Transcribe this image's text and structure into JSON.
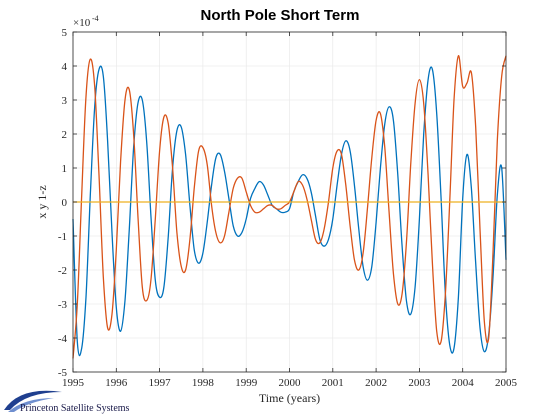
{
  "chart_data": {
    "type": "line",
    "title": "North Pole Short Term",
    "xlabel": "Time (years)",
    "ylabel": "x  y  1-z",
    "xlim": [
      1995,
      2005
    ],
    "ylim": [
      -0.0005,
      0.0005
    ],
    "y_multiplier_label": "×10",
    "y_multiplier_exponent": "-4",
    "xticks": [
      "1995",
      "1996",
      "1997",
      "1998",
      "1999",
      "2000",
      "2001",
      "2002",
      "2003",
      "2004",
      "2005"
    ],
    "yticks": [
      "-5",
      "-4",
      "-3",
      "-2",
      "-1",
      "0",
      "1",
      "2",
      "3",
      "4",
      "5"
    ],
    "grid": true,
    "series": [
      {
        "color": "#0072BD",
        "x": [
          1995.0,
          1995.1,
          1995.2,
          1995.3,
          1995.4,
          1995.5,
          1995.6,
          1995.7,
          1995.8,
          1995.9,
          1996.0,
          1996.1,
          1996.2,
          1996.3,
          1996.4,
          1996.5,
          1996.6,
          1996.7,
          1996.8,
          1996.9,
          1997.0,
          1997.1,
          1997.2,
          1997.3,
          1997.4,
          1997.5,
          1997.6,
          1997.7,
          1997.8,
          1997.9,
          1998.0,
          1998.1,
          1998.2,
          1998.3,
          1998.4,
          1998.5,
          1998.6,
          1998.7,
          1998.8,
          1998.9,
          1999.0,
          1999.1,
          1999.2,
          1999.3,
          1999.4,
          1999.5,
          1999.6,
          1999.7,
          1999.8,
          1999.9,
          2000.0,
          2000.1,
          2000.2,
          2000.3,
          2000.4,
          2000.5,
          2000.6,
          2000.7,
          2000.8,
          2000.9,
          2001.0,
          2001.1,
          2001.2,
          2001.3,
          2001.4,
          2001.5,
          2001.6,
          2001.7,
          2001.8,
          2001.9,
          2002.0,
          2002.1,
          2002.2,
          2002.3,
          2002.4,
          2002.5,
          2002.6,
          2002.7,
          2002.8,
          2002.9,
          2003.0,
          2003.1,
          2003.2,
          2003.3,
          2003.4,
          2003.5,
          2003.6,
          2003.7,
          2003.8,
          2003.9,
          2004.0,
          2004.1,
          2004.2,
          2004.3,
          2004.4,
          2004.5,
          2004.6,
          2004.7,
          2004.8,
          2004.9,
          2005.0
        ],
        "y": [
          -5e-05,
          -0.00041,
          -0.00043,
          -0.00028,
          2e-05,
          0.00028,
          0.00039,
          0.00037,
          0.00018,
          -9e-05,
          -0.00031,
          -0.00038,
          -0.00029,
          -8e-05,
          0.00016,
          0.00029,
          0.0003,
          0.00018,
          -4e-05,
          -0.00023,
          -0.00028,
          -0.00025,
          -0.0001,
          0.0001,
          0.00021,
          0.00022,
          0.00014,
          -1e-05,
          -0.00014,
          -0.00018,
          -0.00015,
          -6e-05,
          5e-05,
          0.00013,
          0.00014,
          9e-05,
          1e-05,
          -7e-05,
          -0.0001,
          -9e-05,
          -5e-05,
          1e-05,
          4e-05,
          6e-05,
          5e-05,
          2e-05,
          -1e-05,
          -2e-05,
          -3e-05,
          -3e-05,
          -2e-05,
          3e-05,
          6e-05,
          8e-05,
          7e-05,
          3e-05,
          -4e-05,
          -0.00011,
          -0.00013,
          -0.00011,
          -5e-05,
          5e-05,
          0.00014,
          0.00018,
          0.00015,
          5e-05,
          -8e-05,
          -0.00019,
          -0.00023,
          -0.00019,
          -6e-05,
          0.0001,
          0.00023,
          0.00028,
          0.00024,
          8e-05,
          -0.00013,
          -0.00029,
          -0.00033,
          -0.00025,
          -5e-05,
          0.0002,
          0.00036,
          0.00039,
          0.00026,
          1e-05,
          -0.00027,
          -0.00042,
          -0.00043,
          -0.00028,
          1e-05,
          0.00014,
          4e-05,
          -0.00018,
          -0.00037,
          -0.00044,
          -0.00039,
          -0.00022,
          2e-05,
          0.0001,
          -0.00017
        ]
      },
      {
        "color": "#D95319",
        "x": [
          1995.0,
          1995.1,
          1995.2,
          1995.3,
          1995.4,
          1995.5,
          1995.6,
          1995.7,
          1995.8,
          1995.9,
          1996.0,
          1996.1,
          1996.2,
          1996.3,
          1996.4,
          1996.5,
          1996.6,
          1996.7,
          1996.8,
          1996.9,
          1997.0,
          1997.1,
          1997.2,
          1997.3,
          1997.4,
          1997.5,
          1997.6,
          1997.7,
          1997.8,
          1997.9,
          1998.0,
          1998.1,
          1998.2,
          1998.3,
          1998.4,
          1998.5,
          1998.6,
          1998.7,
          1998.8,
          1998.9,
          1999.0,
          1999.1,
          1999.2,
          1999.3,
          1999.4,
          1999.5,
          1999.6,
          1999.7,
          1999.8,
          1999.9,
          2000.0,
          2000.1,
          2000.2,
          2000.3,
          2000.4,
          2000.5,
          2000.6,
          2000.7,
          2000.8,
          2000.9,
          2001.0,
          2001.1,
          2001.2,
          2001.3,
          2001.4,
          2001.5,
          2001.6,
          2001.7,
          2001.8,
          2001.9,
          2002.0,
          2002.1,
          2002.2,
          2002.3,
          2002.4,
          2002.5,
          2002.6,
          2002.7,
          2002.8,
          2002.9,
          2003.0,
          2003.1,
          2003.2,
          2003.3,
          2003.4,
          2003.5,
          2003.6,
          2003.7,
          2003.8,
          2003.9,
          2004.0,
          2004.1,
          2004.2,
          2004.3,
          2004.4,
          2004.5,
          2004.6,
          2004.7,
          2004.8,
          2004.9,
          2005.0
        ],
        "y": [
          -0.00046,
          -0.0003,
          2e-05,
          0.00031,
          0.00042,
          0.00034,
          8e-05,
          -0.00022,
          -0.00037,
          -0.00033,
          -0.00014,
          0.00012,
          0.0003,
          0.00033,
          0.0002,
          -4e-05,
          -0.00025,
          -0.00029,
          -0.00023,
          -5e-05,
          0.00015,
          0.00025,
          0.00023,
          0.0001,
          -9e-05,
          -0.00019,
          -0.0002,
          -0.00011,
          4e-05,
          0.00015,
          0.00016,
          0.00011,
          -1e-05,
          -9e-05,
          -0.00012,
          -0.0001,
          -3e-05,
          4e-05,
          7e-05,
          7e-05,
          3e-05,
          -1e-05,
          -3e-05,
          -3e-05,
          -2e-05,
          -1e-05,
          -1e-05,
          -2e-05,
          -2e-05,
          -1e-05,
          0.0,
          3e-05,
          6e-05,
          5e-05,
          1e-05,
          -5e-05,
          -0.00011,
          -0.00012,
          -8e-05,
          0.0,
          0.0001,
          0.00015,
          0.00014,
          5e-05,
          -7e-05,
          -0.00017,
          -0.0002,
          -0.00015,
          -2e-05,
          0.00013,
          0.00024,
          0.00026,
          0.00016,
          -3e-05,
          -0.00021,
          -0.0003,
          -0.00027,
          -0.00012,
          0.00011,
          0.00029,
          0.00036,
          0.00029,
          8e-05,
          -0.00018,
          -0.00038,
          -0.00041,
          -0.00027,
          0.0,
          0.0003,
          0.00043,
          0.00034,
          0.00035,
          0.00038,
          0.00022,
          -8e-05,
          -0.00035,
          -0.0004,
          -0.00015,
          0.00018,
          0.00037,
          0.00043
        ]
      },
      {
        "color": "#EDB120",
        "x": [
          1995.0,
          2005.0
        ],
        "y": [
          0.0,
          0.0
        ]
      }
    ]
  },
  "footer": {
    "brand_text": "Princeton Satellite Systems",
    "logo_icon": "swoosh-logo-icon"
  }
}
